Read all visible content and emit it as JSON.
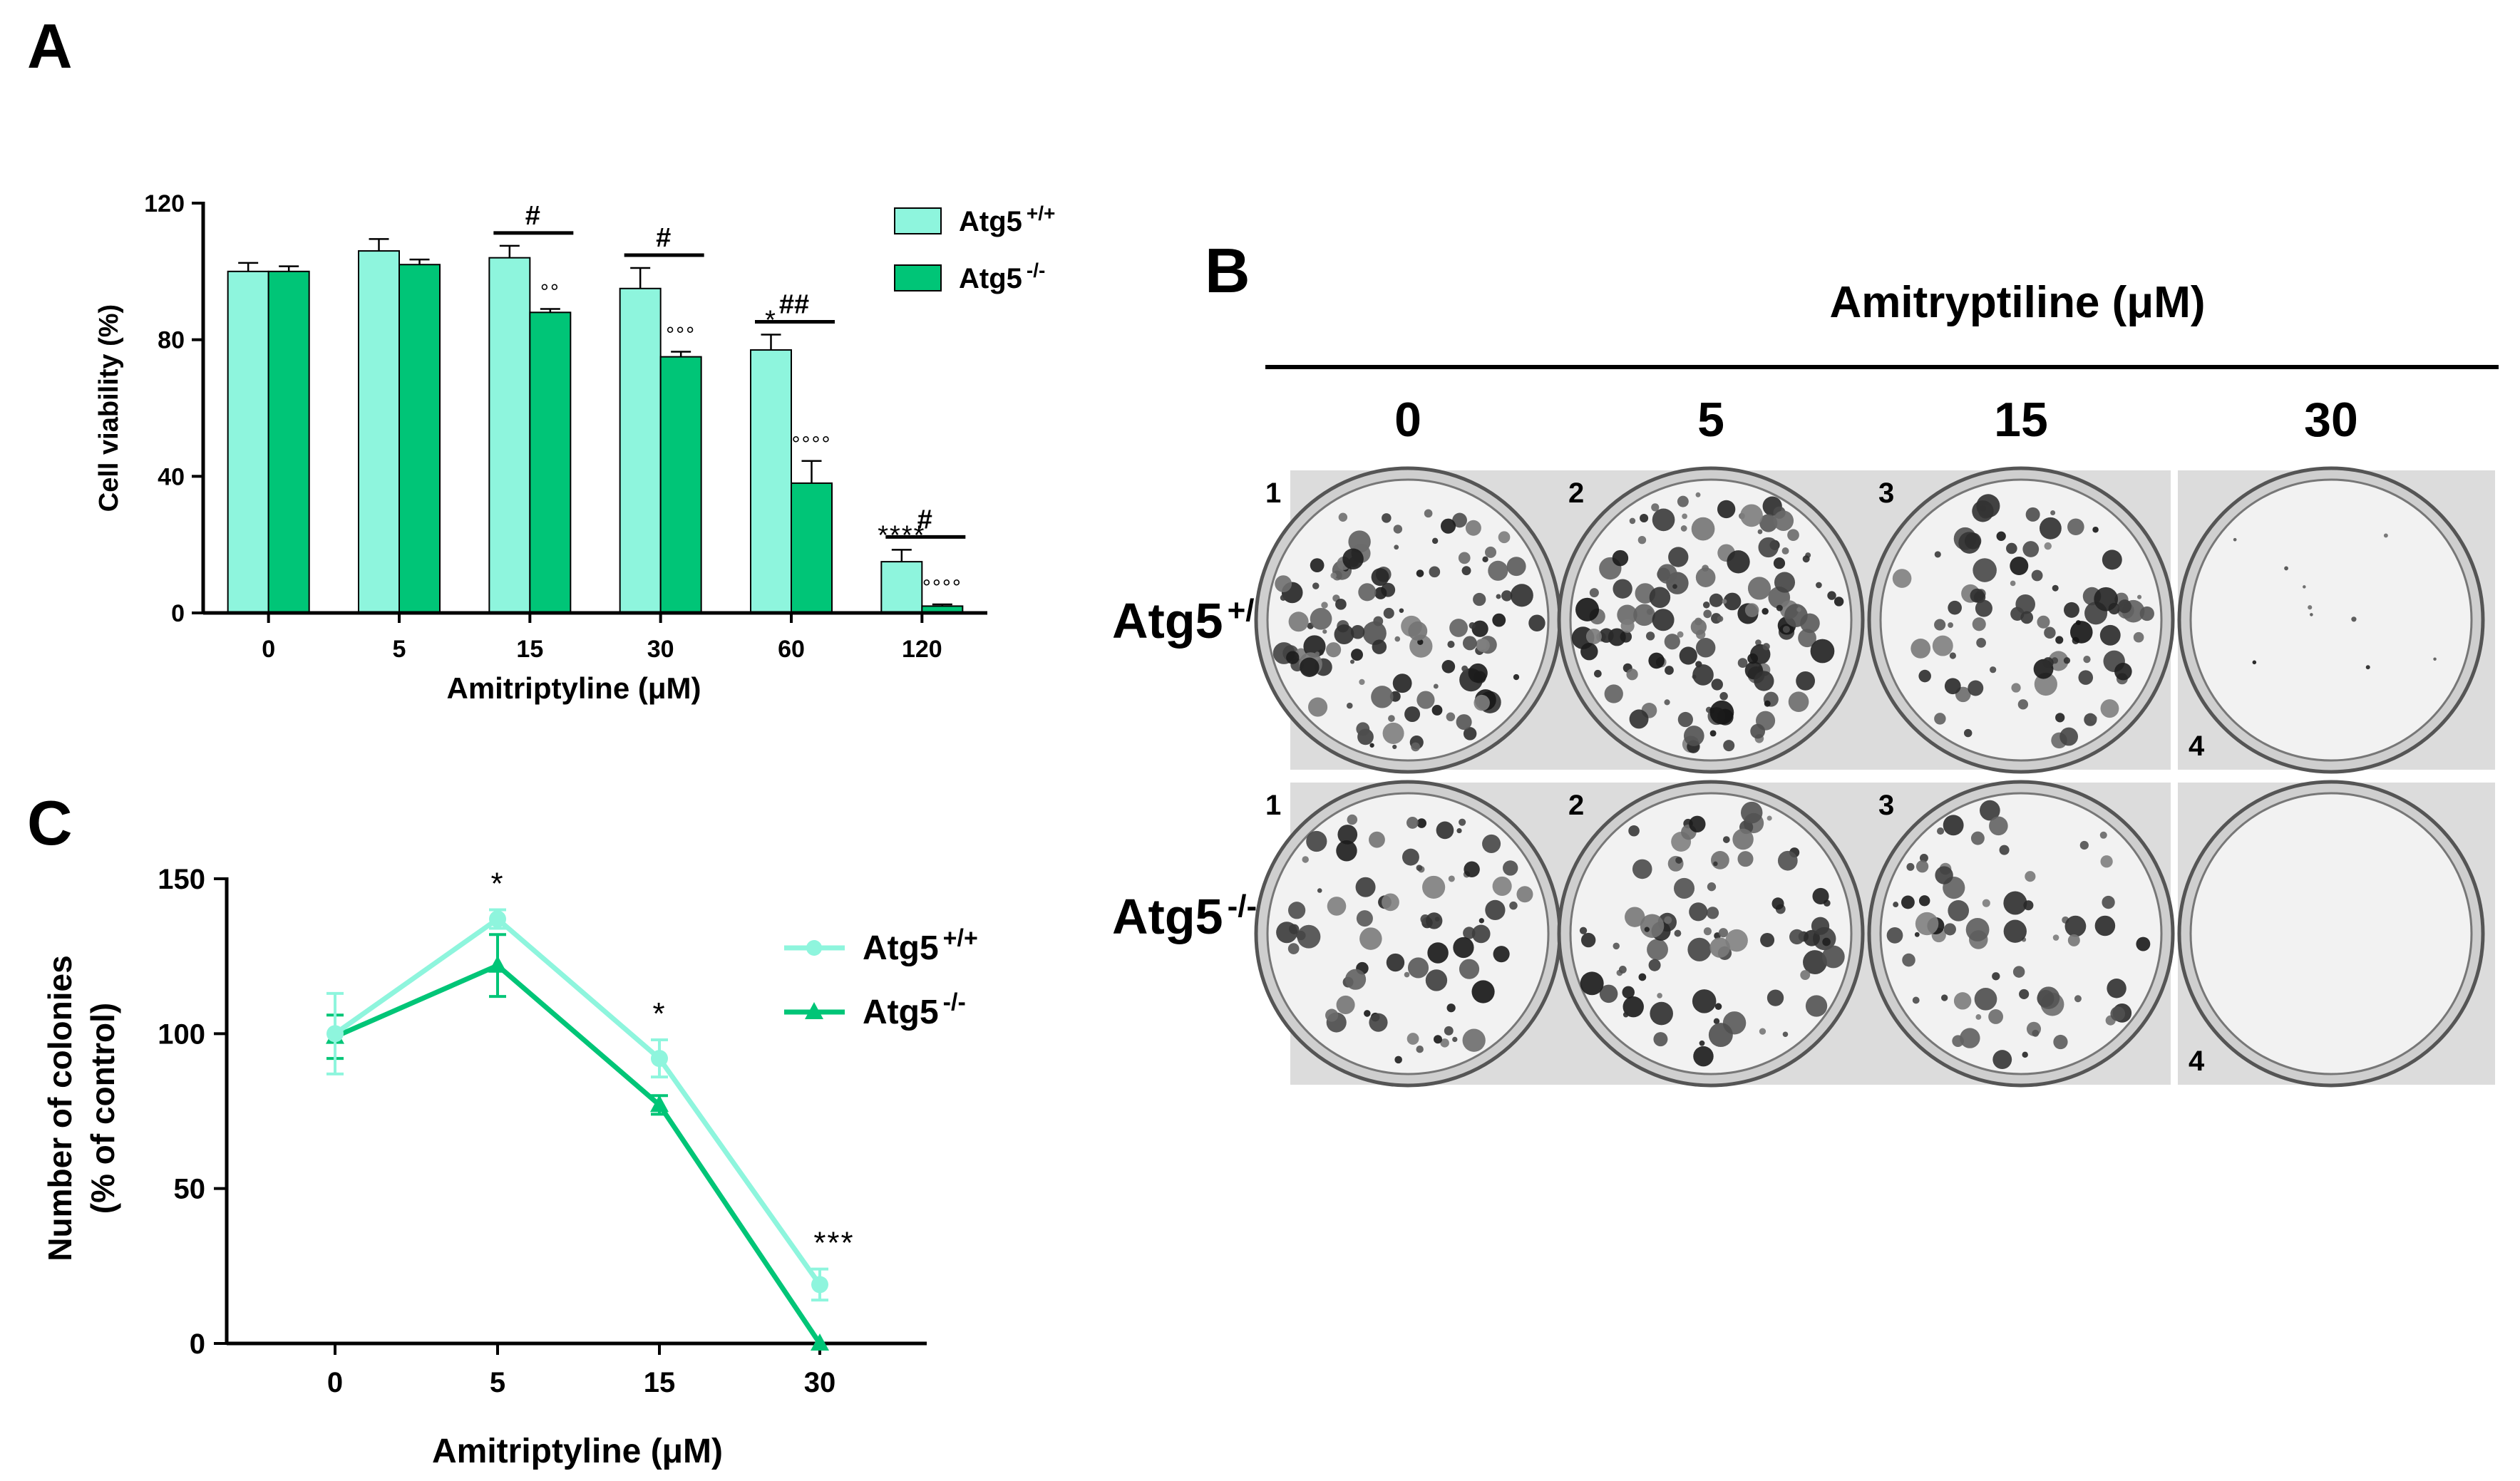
{
  "panel_labels": {
    "a": "A",
    "b": "B",
    "c": "C"
  },
  "colors": {
    "wt": "#8EF5DD",
    "ko": "#00C577",
    "axis": "#000000",
    "plate_bg": "#dcdcdc"
  },
  "chart_data": [
    {
      "id": "A",
      "type": "bar",
      "title": "",
      "categories": [
        "0",
        "5",
        "15",
        "30",
        "60",
        "120"
      ],
      "series": [
        {
          "name": "Atg5 +/+",
          "values": [
            100,
            106,
            104,
            95,
            77,
            15
          ],
          "errors": [
            2.5,
            3.5,
            3.5,
            6,
            4.5,
            3.5
          ]
        },
        {
          "name": "Atg5 -/-",
          "values": [
            100,
            102,
            88,
            75,
            38,
            2
          ],
          "errors": [
            1.5,
            1.5,
            1,
            1.5,
            6.5,
            0.5
          ]
        }
      ],
      "xlabel": "Amitriptyline (μM)",
      "ylabel": "Cell viability (%)",
      "ylim": [
        0,
        120
      ],
      "yticks": [
        "0",
        "40",
        "80",
        "120"
      ],
      "legend": {
        "position": "top-right",
        "entries": [
          "Atg5",
          "Atg5"
        ],
        "superscripts": [
          "+/+",
          "-/-"
        ]
      },
      "annotations": {
        "wt": [
          "",
          "",
          "",
          "",
          "*",
          "****"
        ],
        "ko": [
          "",
          "",
          "°°",
          "°°°",
          "°°°°",
          "°°°°"
        ],
        "pair": [
          "",
          "",
          "#",
          "#",
          "##",
          "#"
        ]
      }
    },
    {
      "id": "C",
      "type": "line",
      "title": "",
      "categories": [
        "0",
        "5",
        "15",
        "30"
      ],
      "series": [
        {
          "name": "Atg5 +/+",
          "values": [
            100,
            137,
            92,
            19
          ],
          "errors": [
            13,
            3,
            6,
            5
          ],
          "marker": "circle"
        },
        {
          "name": "Atg5 -/-",
          "values": [
            99,
            122,
            77,
            0
          ],
          "errors": [
            7,
            10,
            3,
            0
          ],
          "marker": "triangle"
        }
      ],
      "xlabel": "Amitriptyline (μM)",
      "ylabel_lines": [
        "Number of colonies",
        "(% of control)"
      ],
      "ylim": [
        0,
        150
      ],
      "yticks": [
        "0",
        "50",
        "100",
        "150"
      ],
      "legend": {
        "position": "top-right",
        "entries": [
          "Atg5",
          "Atg5"
        ],
        "superscripts": [
          "+/+",
          "-/-"
        ]
      },
      "annotations": [
        "",
        "*",
        "*",
        "***"
      ]
    }
  ],
  "panel_b": {
    "header": "Amitryptiline (μM)",
    "concentrations": [
      "0",
      "5",
      "15",
      "30"
    ],
    "rows": [
      {
        "label": "Atg5",
        "sup": "+/+",
        "well_numbers": [
          "1",
          "2",
          "3",
          "4"
        ],
        "colony_density": [
          0.9,
          1.0,
          0.65,
          0.03
        ]
      },
      {
        "label": "Atg5",
        "sup": "-/-",
        "well_numbers": [
          "1",
          "2",
          "3",
          "4"
        ],
        "colony_density": [
          0.55,
          0.6,
          0.5,
          0.0
        ]
      }
    ]
  }
}
